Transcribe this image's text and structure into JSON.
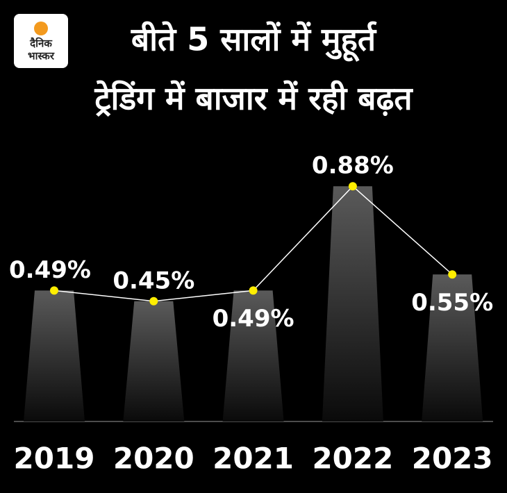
{
  "logo": {
    "lines": [
      "दैनिक",
      "भास्कर"
    ]
  },
  "chart_data": {
    "type": "bar",
    "title": [
      "बीते 5 सालों में मुहूर्त",
      "ट्रेडिंग में बाजार में रही बढ़त"
    ],
    "categories": [
      "2019",
      "2020",
      "2021",
      "2022",
      "2023"
    ],
    "values": [
      0.49,
      0.45,
      0.49,
      0.88,
      0.55
    ],
    "value_labels": [
      "0.49%",
      "0.45%",
      "0.49%",
      "0.88%",
      "0.55%"
    ],
    "line_color": "#ffffff",
    "marker_color": "#ffee00"
  }
}
